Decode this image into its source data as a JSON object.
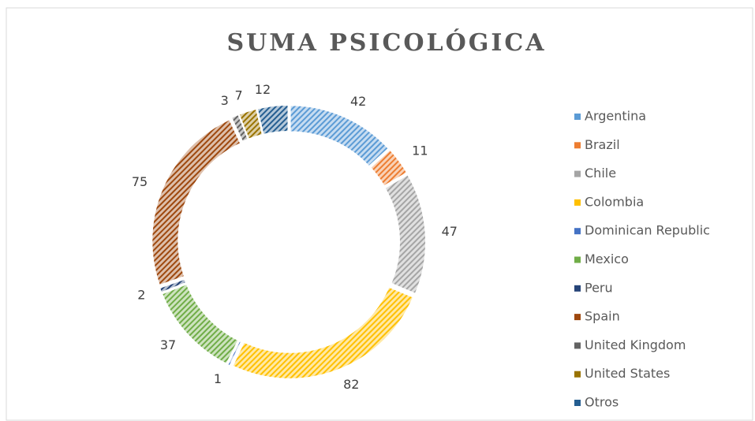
{
  "chart_data": {
    "type": "donut",
    "title": "SUMA PSICOLÓGICA",
    "categories": [
      "Argentina",
      "Brazil",
      "Chile",
      "Colombia",
      "Dominican Republic",
      "Mexico",
      "Peru",
      "Spain",
      "United Kingdom",
      "United States",
      "Otros"
    ],
    "values": [
      42,
      11,
      47,
      82,
      1,
      37,
      2,
      75,
      3,
      7,
      12
    ],
    "colors": [
      "#5b9bd5",
      "#ed7d31",
      "#a5a5a5",
      "#ffc000",
      "#4472c4",
      "#70ad47",
      "#264478",
      "#9e480e",
      "#636363",
      "#997300",
      "#255e91"
    ],
    "legend": "right"
  }
}
